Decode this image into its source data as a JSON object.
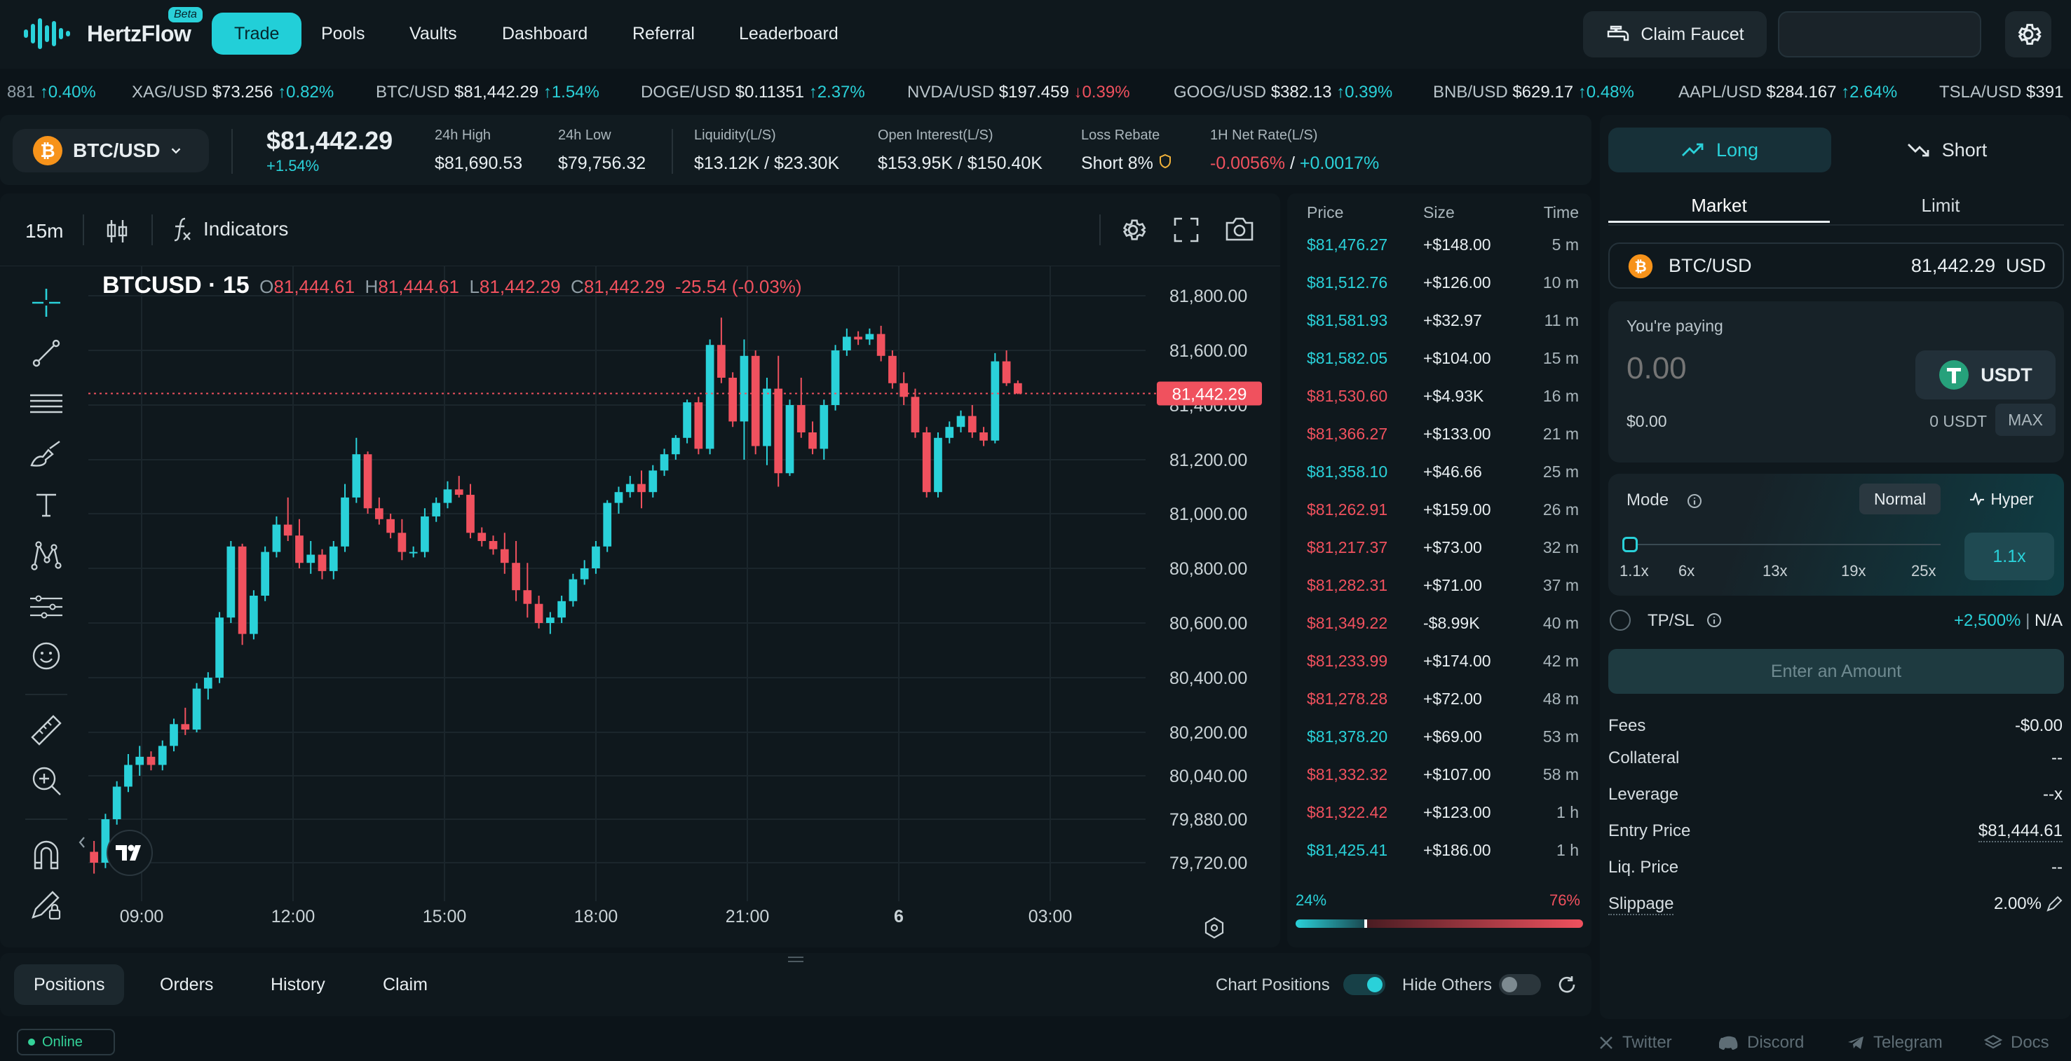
{
  "nav": {
    "logo_name": "HertzFlow",
    "beta": "Beta",
    "links": [
      "Trade",
      "Pools",
      "Vaults",
      "Dashboard",
      "Referral",
      "Leaderboard"
    ],
    "active": "Trade",
    "claim_faucet": "Claim Faucet"
  },
  "ticker": [
    {
      "sym": "",
      "price": "881",
      "chg": "↑0.40%",
      "dir": "up"
    },
    {
      "sym": "XAG/USD",
      "price": "$73.256",
      "chg": "↑0.82%",
      "dir": "up"
    },
    {
      "sym": "BTC/USD",
      "price": "$81,442.29",
      "chg": "↑1.54%",
      "dir": "up"
    },
    {
      "sym": "DOGE/USD",
      "price": "$0.11351",
      "chg": "↑2.37%",
      "dir": "up"
    },
    {
      "sym": "NVDA/USD",
      "price": "$197.459",
      "chg": "↓0.39%",
      "dir": "dn"
    },
    {
      "sym": "GOOG/USD",
      "price": "$382.13",
      "chg": "↑0.39%",
      "dir": "up"
    },
    {
      "sym": "BNB/USD",
      "price": "$629.17",
      "chg": "↑0.48%",
      "dir": "up"
    },
    {
      "sym": "AAPL/USD",
      "price": "$284.167",
      "chg": "↑2.64%",
      "dir": "up"
    },
    {
      "sym": "TSLA/USD",
      "price": "$391",
      "chg": "",
      "dir": "up"
    }
  ],
  "market": {
    "pair": "BTC/USD",
    "price": "$81,442.29",
    "change": "+1.54%",
    "stats": [
      {
        "label": "24h High",
        "value": "$81,690.53"
      },
      {
        "label": "24h Low",
        "value": "$79,756.32"
      },
      {
        "label": "Liquidity(L/S)",
        "value": "$13.12K / $23.30K"
      },
      {
        "label": "Open Interest(L/S)",
        "value": "$153.95K / $150.40K"
      },
      {
        "label": "Loss Rebate",
        "value": "Short 8%"
      }
    ],
    "net_rate_label": "1H Net Rate(L/S)",
    "net_rate_short": "-0.0056%",
    "net_rate_sep": " / ",
    "net_rate_long": "+0.0017%"
  },
  "chart_toolbar": {
    "interval": "15m",
    "indicators": "Indicators"
  },
  "ohlc": {
    "symbol": "BTCUSD",
    "interval": "15",
    "o_label": "O",
    "o": "81,444.61",
    "h_label": "H",
    "h": "81,444.61",
    "l_label": "L",
    "l": "81,442.29",
    "c_label": "C",
    "c": "81,442.29",
    "change": "-25.54 (-0.03%)"
  },
  "colors": {
    "up": "#2ad1d9",
    "down": "#f0515e",
    "bg": "#0f181d"
  },
  "chart_data": {
    "type": "candlestick",
    "y_ticks": [
      "81,800.00",
      "81,600.00",
      "81,400.00",
      "81,200.00",
      "81,000.00",
      "80,800.00",
      "80,600.00",
      "80,400.00",
      "80,200.00",
      "80,040.00",
      "79,880.00",
      "79,720.00"
    ],
    "y_tick_values": [
      81800,
      81600,
      81400,
      81200,
      81000,
      80800,
      80600,
      80400,
      80200,
      80040,
      79880,
      79720
    ],
    "x_ticks": [
      "09:00",
      "12:00",
      "15:00",
      "18:00",
      "21:00",
      "6",
      "03:00"
    ],
    "last_price": 81442.29,
    "last_price_label": "81,442.29",
    "candles": [
      [
        79760,
        79800,
        79680,
        79720
      ],
      [
        79720,
        79900,
        79700,
        79880
      ],
      [
        79880,
        80020,
        79860,
        80000
      ],
      [
        80000,
        80120,
        79980,
        80080
      ],
      [
        80080,
        80150,
        80040,
        80110
      ],
      [
        80110,
        80130,
        80060,
        80080
      ],
      [
        80080,
        80170,
        80060,
        80150
      ],
      [
        80150,
        80250,
        80130,
        80230
      ],
      [
        80230,
        80290,
        80190,
        80210
      ],
      [
        80210,
        80380,
        80200,
        80360
      ],
      [
        80360,
        80420,
        80320,
        80400
      ],
      [
        80400,
        80640,
        80380,
        80620
      ],
      [
        80620,
        80900,
        80600,
        80880
      ],
      [
        80880,
        80890,
        80520,
        80560
      ],
      [
        80560,
        80720,
        80540,
        80700
      ],
      [
        80700,
        80880,
        80680,
        80860
      ],
      [
        80860,
        80990,
        80840,
        80960
      ],
      [
        80960,
        81060,
        80900,
        80920
      ],
      [
        80920,
        80980,
        80800,
        80820
      ],
      [
        80820,
        80900,
        80780,
        80850
      ],
      [
        80850,
        80870,
        80760,
        80790
      ],
      [
        80790,
        80900,
        80760,
        80880
      ],
      [
        80880,
        81110,
        80860,
        81060
      ],
      [
        81060,
        81280,
        81040,
        81220
      ],
      [
        81220,
        81230,
        81000,
        81020
      ],
      [
        81020,
        81060,
        80960,
        80980
      ],
      [
        80980,
        81000,
        80910,
        80930
      ],
      [
        80930,
        80980,
        80830,
        80860
      ],
      [
        80860,
        80880,
        80840,
        80860
      ],
      [
        80860,
        81020,
        80840,
        80990
      ],
      [
        80990,
        81060,
        80970,
        81040
      ],
      [
        81040,
        81120,
        81020,
        81090
      ],
      [
        81090,
        81140,
        81060,
        81070
      ],
      [
        81070,
        81110,
        80910,
        80930
      ],
      [
        80930,
        80950,
        80880,
        80900
      ],
      [
        80900,
        80920,
        80850,
        80870
      ],
      [
        80870,
        80930,
        80780,
        80820
      ],
      [
        80820,
        80900,
        80680,
        80720
      ],
      [
        80720,
        80820,
        80620,
        80670
      ],
      [
        80670,
        80700,
        80580,
        80600
      ],
      [
        80600,
        80640,
        80560,
        80620
      ],
      [
        80620,
        80700,
        80600,
        80680
      ],
      [
        80680,
        80780,
        80660,
        80760
      ],
      [
        80760,
        80830,
        80740,
        80800
      ],
      [
        80800,
        80900,
        80780,
        80880
      ],
      [
        80880,
        81050,
        80860,
        81040
      ],
      [
        81040,
        81100,
        81000,
        81080
      ],
      [
        81080,
        81140,
        81060,
        81110
      ],
      [
        81110,
        81160,
        81020,
        81080
      ],
      [
        81080,
        81180,
        81060,
        81160
      ],
      [
        81160,
        81240,
        81140,
        81220
      ],
      [
        81220,
        81290,
        81200,
        81280
      ],
      [
        81280,
        81420,
        81260,
        81410
      ],
      [
        81410,
        81430,
        81220,
        81240
      ],
      [
        81240,
        81640,
        81220,
        81620
      ],
      [
        81620,
        81720,
        81480,
        81500
      ],
      [
        81500,
        81520,
        81320,
        81340
      ],
      [
        81340,
        81640,
        81200,
        81580
      ],
      [
        81580,
        81600,
        81220,
        81250
      ],
      [
        81250,
        81500,
        81180,
        81460
      ],
      [
        81460,
        81580,
        81100,
        81150
      ],
      [
        81150,
        81420,
        81140,
        81400
      ],
      [
        81400,
        81500,
        81280,
        81300
      ],
      [
        81300,
        81340,
        81220,
        81240
      ],
      [
        81240,
        81420,
        81200,
        81400
      ],
      [
        81400,
        81620,
        81380,
        81600
      ],
      [
        81600,
        81680,
        81580,
        81650
      ],
      [
        81650,
        81670,
        81620,
        81640
      ],
      [
        81640,
        81680,
        81620,
        81660
      ],
      [
        81660,
        81690,
        81560,
        81580
      ],
      [
        81580,
        81600,
        81460,
        81480
      ],
      [
        81480,
        81520,
        81400,
        81430
      ],
      [
        81430,
        81460,
        81280,
        81300
      ],
      [
        81300,
        81320,
        81060,
        81080
      ],
      [
        81080,
        81300,
        81060,
        81280
      ],
      [
        81280,
        81340,
        81260,
        81320
      ],
      [
        81320,
        81380,
        81300,
        81360
      ],
      [
        81360,
        81400,
        81280,
        81300
      ],
      [
        81300,
        81320,
        81250,
        81270
      ],
      [
        81270,
        81590,
        81260,
        81560
      ],
      [
        81560,
        81600,
        81470,
        81480
      ],
      [
        81480,
        81490,
        81440,
        81442.29
      ]
    ]
  },
  "trades": {
    "headers": [
      "Price",
      "Size",
      "Time"
    ],
    "rows": [
      {
        "price": "$81,476.27",
        "size": "+$148.00",
        "time": "5 m",
        "dir": "up"
      },
      {
        "price": "$81,512.76",
        "size": "+$126.00",
        "time": "10 m",
        "dir": "up"
      },
      {
        "price": "$81,581.93",
        "size": "+$32.97",
        "time": "11 m",
        "dir": "up"
      },
      {
        "price": "$81,582.05",
        "size": "+$104.00",
        "time": "15 m",
        "dir": "up"
      },
      {
        "price": "$81,530.60",
        "size": "+$4.93K",
        "time": "16 m",
        "dir": "dn"
      },
      {
        "price": "$81,366.27",
        "size": "+$133.00",
        "time": "21 m",
        "dir": "dn"
      },
      {
        "price": "$81,358.10",
        "size": "+$46.66",
        "time": "25 m",
        "dir": "up"
      },
      {
        "price": "$81,262.91",
        "size": "+$159.00",
        "time": "26 m",
        "dir": "dn"
      },
      {
        "price": "$81,217.37",
        "size": "+$73.00",
        "time": "32 m",
        "dir": "dn"
      },
      {
        "price": "$81,282.31",
        "size": "+$71.00",
        "time": "37 m",
        "dir": "dn"
      },
      {
        "price": "$81,349.22",
        "size": "-$8.99K",
        "time": "40 m",
        "dir": "dn"
      },
      {
        "price": "$81,233.99",
        "size": "+$174.00",
        "time": "42 m",
        "dir": "dn"
      },
      {
        "price": "$81,278.28",
        "size": "+$72.00",
        "time": "48 m",
        "dir": "dn"
      },
      {
        "price": "$81,378.20",
        "size": "+$69.00",
        "time": "53 m",
        "dir": "up"
      },
      {
        "price": "$81,332.32",
        "size": "+$107.00",
        "time": "58 m",
        "dir": "dn"
      },
      {
        "price": "$81,322.42",
        "size": "+$123.00",
        "time": "1 h",
        "dir": "dn"
      },
      {
        "price": "$81,425.41",
        "size": "+$186.00",
        "time": "1 h",
        "dir": "up"
      }
    ],
    "ratio_long": "24%",
    "ratio_short": "76%",
    "ratio_long_value": 24
  },
  "bottom": {
    "tabs": [
      "Positions",
      "Orders",
      "History",
      "Claim"
    ],
    "chart_positions": "Chart Positions",
    "hide_others": "Hide Others",
    "status": "Online"
  },
  "footer": [
    "Twitter",
    "Discord",
    "Telegram",
    "Docs"
  ],
  "form": {
    "long": "Long",
    "short": "Short",
    "market": "Market",
    "limit": "Limit",
    "pair": "BTC/USD",
    "pair_price": "81,442.29",
    "pair_unit": "USD",
    "paying_label": "You're paying",
    "paying_placeholder": "0.00",
    "token": "USDT",
    "usd_value": "$0.00",
    "balance": "0 USDT",
    "max": "MAX",
    "mode_label": "Mode",
    "mode_normal": "Normal",
    "mode_hyper": "Hyper",
    "lev_ticks": [
      "1.1x",
      "6x",
      "13x",
      "19x",
      "25x"
    ],
    "lev_value": "1.1x",
    "tpsl": "TP/SL",
    "tp": "+2,500%",
    "sl": "N/A",
    "submit": "Enter an Amount",
    "details": [
      {
        "k": "Fees",
        "v": "-$0.00"
      },
      {
        "k": "Collateral",
        "v": "--"
      },
      {
        "k": "Leverage",
        "v": "--x"
      },
      {
        "k": "Entry Price",
        "v": "$81,444.61"
      },
      {
        "k": "Liq. Price",
        "v": "--"
      },
      {
        "k": "Slippage",
        "v": "2.00%"
      }
    ]
  }
}
